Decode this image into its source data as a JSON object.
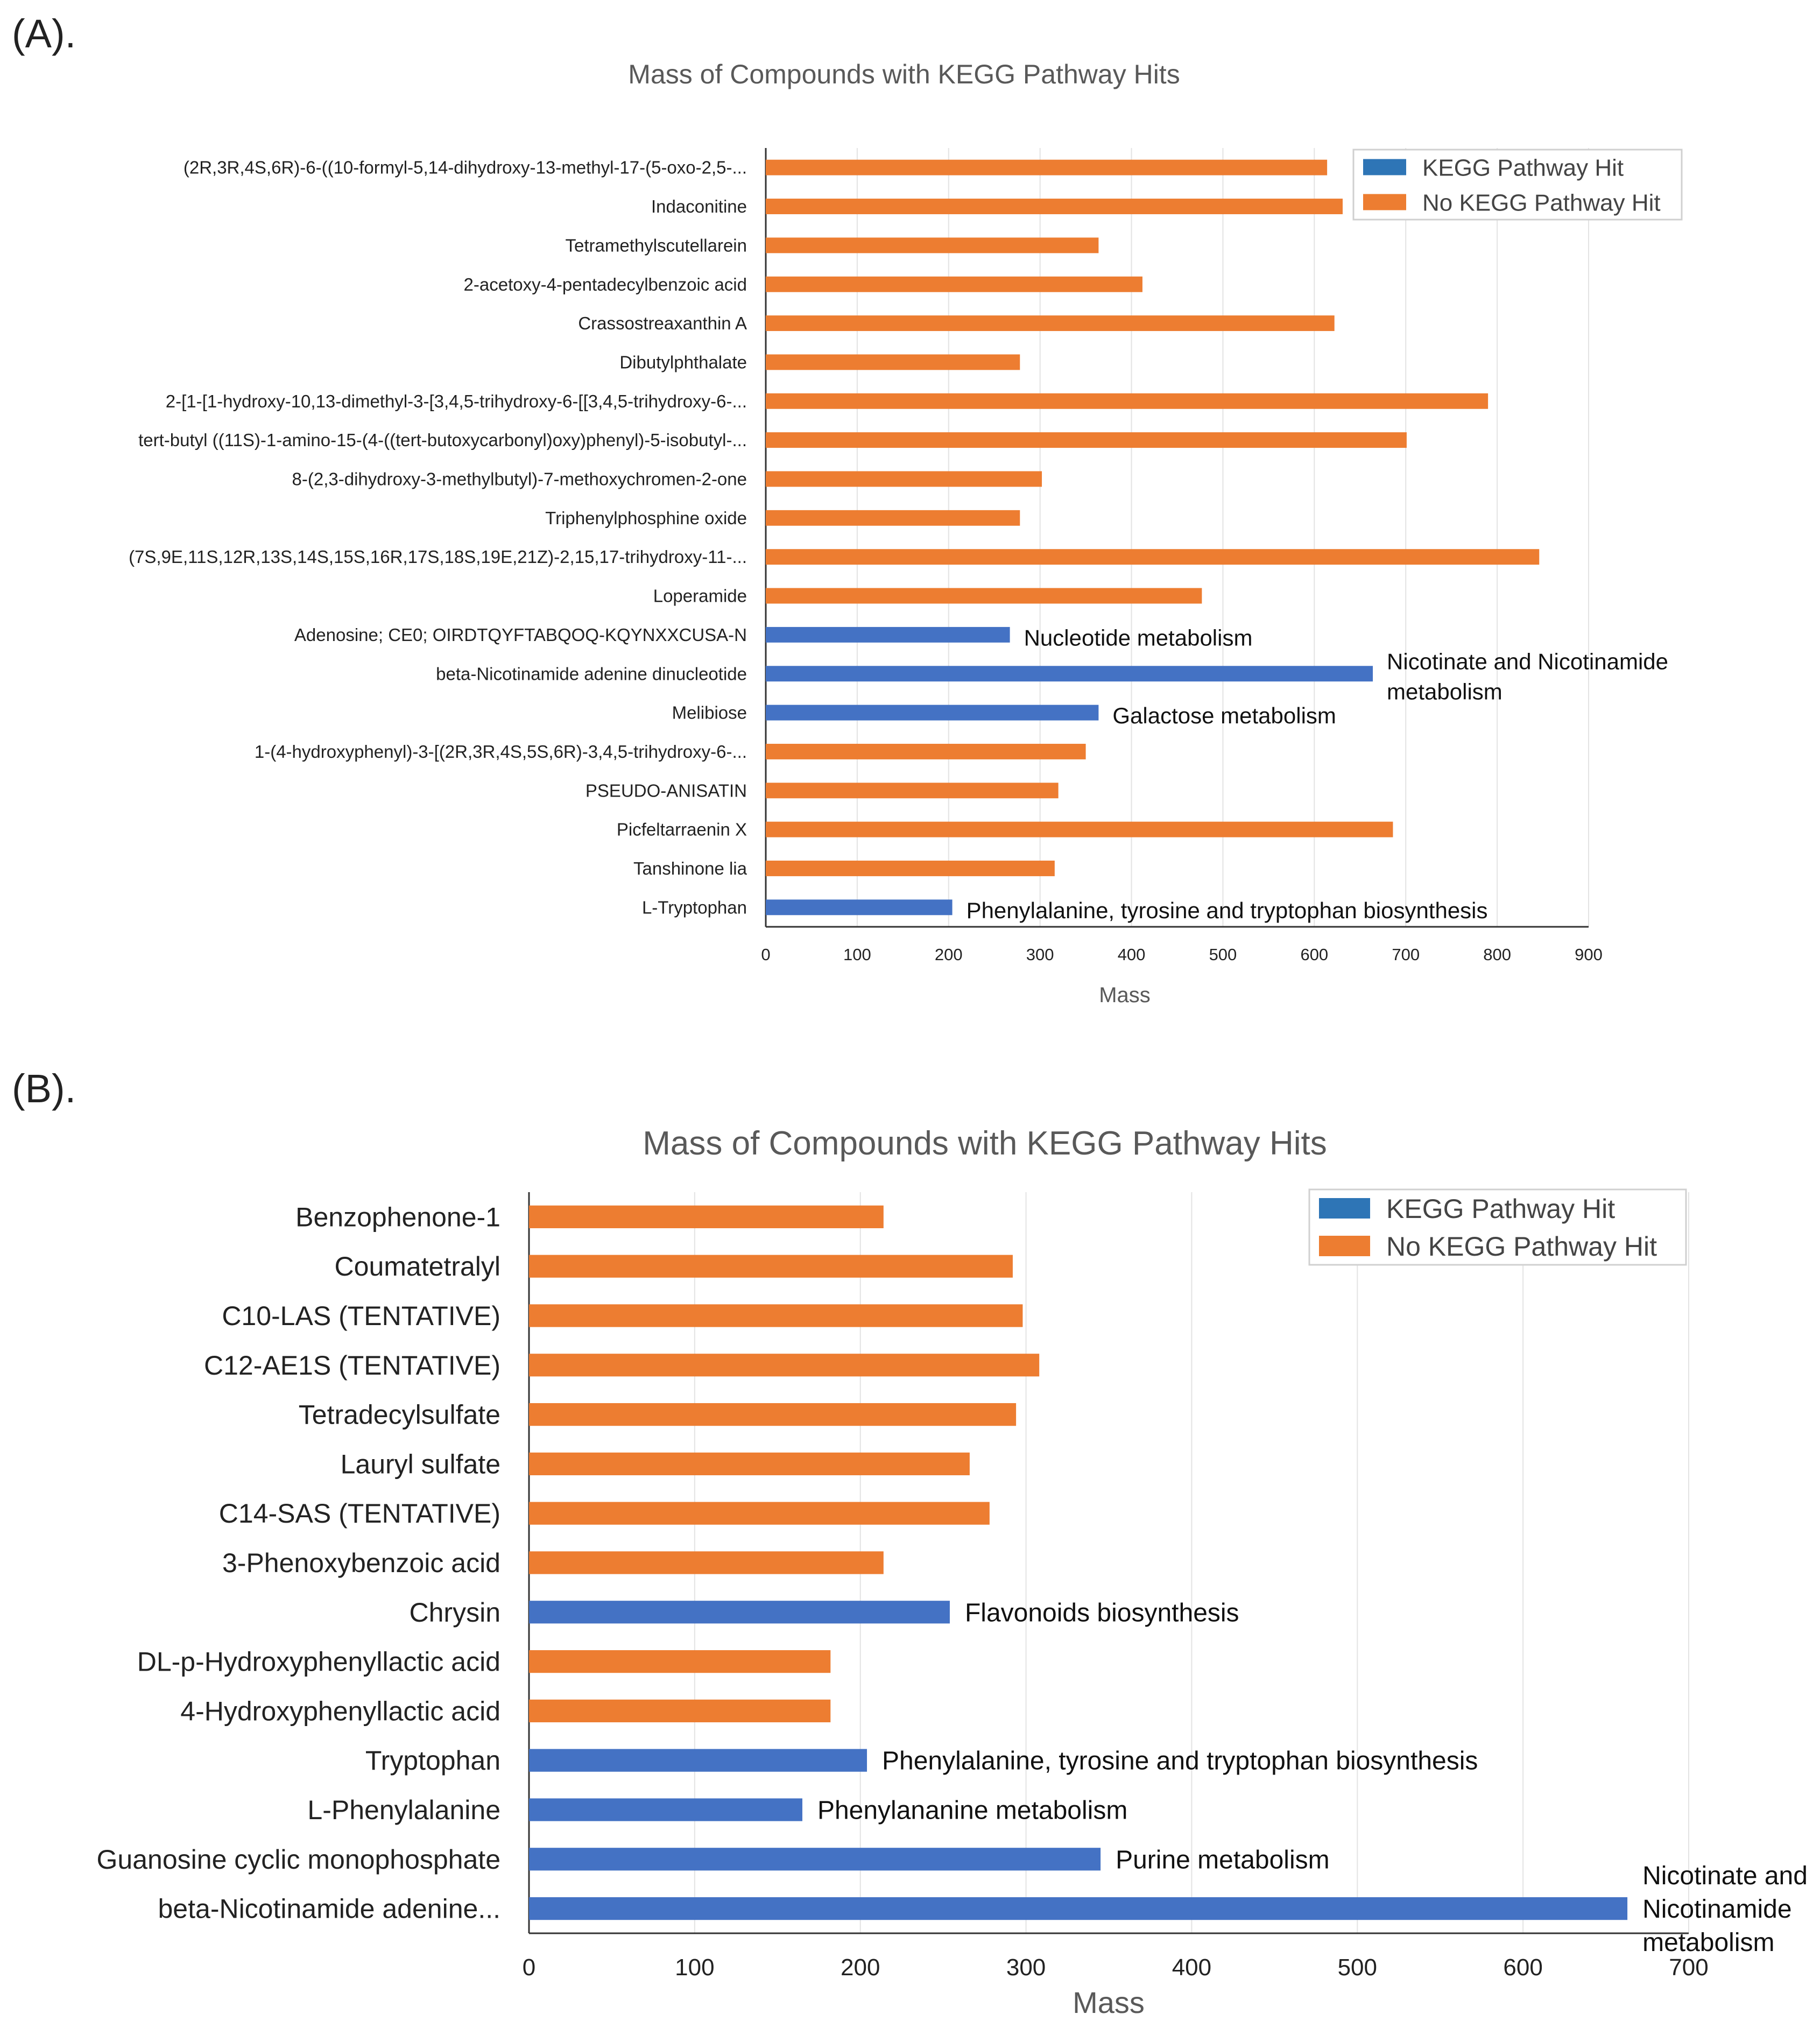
{
  "figure": {
    "panel_a_letter": "(A).",
    "panel_b_letter": "(B)."
  },
  "colors": {
    "hit": "#4472C4",
    "nohit": "#ED7D31",
    "legend_hit_swatch": "#2E75B6",
    "grid": "#e3e3e3",
    "axis": "#333333",
    "title": "#595959"
  },
  "chart_data": [
    {
      "type": "bar",
      "orientation": "horizontal",
      "title": "Mass of Compounds with KEGG Pathway Hits",
      "xlabel": "Mass",
      "ylabel": "",
      "xlim": [
        0,
        900
      ],
      "xticks": [
        0,
        100,
        200,
        300,
        400,
        500,
        600,
        700,
        800,
        900
      ],
      "grid": true,
      "legend": {
        "position": "top-right",
        "entries": [
          "KEGG Pathway Hit",
          "No KEGG Pathway Hit"
        ]
      },
      "categories": [
        "(2R,3R,4S,6R)-6-((10-formyl-5,14-dihydroxy-13-methyl-17-(5-oxo-2,5-...",
        "Indaconitine",
        "Tetramethylscutellarein",
        "2-acetoxy-4-pentadecylbenzoic acid",
        "Crassostreaxanthin A",
        "Dibutylphthalate",
        "2-[1-[1-hydroxy-10,13-dimethyl-3-[3,4,5-trihydroxy-6-[[3,4,5-trihydroxy-6-...",
        "tert-butyl ((11S)-1-amino-15-(4-((tert-butoxycarbonyl)oxy)phenyl)-5-isobutyl-...",
        "8-(2,3-dihydroxy-3-methylbutyl)-7-methoxychromen-2-one",
        "Triphenylphosphine oxide",
        "(7S,9E,11S,12R,13S,14S,15S,16R,17S,18S,19E,21Z)-2,15,17-trihydroxy-11-...",
        "Loperamide",
        "Adenosine; CE0; OIRDTQYFTABQOQ-KQYNXXCUSA-N",
        "beta-Nicotinamide adenine dinucleotide",
        "Melibiose",
        "1-(4-hydroxyphenyl)-3-[(2R,3R,4S,5S,6R)-3,4,5-trihydroxy-6-...",
        "PSEUDO-ANISATIN",
        "Picfeltarraenin X",
        "Tanshinone lia",
        "L-Tryptophan"
      ],
      "values": [
        614,
        631,
        364,
        412,
        622,
        278,
        790,
        701,
        302,
        278,
        846,
        477,
        267,
        664,
        364,
        350,
        320,
        686,
        316,
        204
      ],
      "kegg_hit": [
        false,
        false,
        false,
        false,
        false,
        false,
        false,
        false,
        false,
        false,
        false,
        false,
        true,
        true,
        true,
        false,
        false,
        false,
        false,
        true
      ],
      "annotations": [
        {
          "category_index": 12,
          "lines": [
            "Nucleotide metabolism"
          ]
        },
        {
          "category_index": 13,
          "lines": [
            "Nicotinate and Nicotinamide",
            "metabolism"
          ]
        },
        {
          "category_index": 14,
          "lines": [
            "Galactose metabolism"
          ]
        },
        {
          "category_index": 19,
          "lines": [
            "Phenylalanine, tyrosine and tryptophan biosynthesis"
          ]
        }
      ]
    },
    {
      "type": "bar",
      "orientation": "horizontal",
      "title": "Mass of Compounds with KEGG Pathway Hits",
      "xlabel": "Mass",
      "ylabel": "",
      "xlim": [
        0,
        700
      ],
      "xticks": [
        0,
        100,
        200,
        300,
        400,
        500,
        600,
        700
      ],
      "grid": true,
      "legend": {
        "position": "top-right",
        "entries": [
          "KEGG Pathway Hit",
          "No KEGG Pathway Hit"
        ]
      },
      "categories": [
        "Benzophenone-1",
        "Coumatetralyl",
        "C10-LAS (TENTATIVE)",
        "C12-AE1S (TENTATIVE)",
        "Tetradecylsulfate",
        "Lauryl sulfate",
        "C14-SAS (TENTATIVE)",
        "3-Phenoxybenzoic acid",
        "Chrysin",
        "DL-p-Hydroxyphenyllactic acid",
        "4-Hydroxyphenyllactic acid",
        "Tryptophan",
        "L-Phenylalanine",
        "Guanosine cyclic monophosphate",
        "beta-Nicotinamide adenine..."
      ],
      "values": [
        214,
        292,
        298,
        308,
        294,
        266,
        278,
        214,
        254,
        182,
        182,
        204,
        165,
        345,
        663
      ],
      "kegg_hit": [
        false,
        false,
        false,
        false,
        false,
        false,
        false,
        false,
        true,
        false,
        false,
        true,
        true,
        true,
        true
      ],
      "annotations": [
        {
          "category_index": 8,
          "lines": [
            "Flavonoids biosynthesis"
          ]
        },
        {
          "category_index": 11,
          "lines": [
            "Phenylalanine, tyrosine and tryptophan biosynthesis"
          ]
        },
        {
          "category_index": 12,
          "lines": [
            "Phenylananine metabolism"
          ]
        },
        {
          "category_index": 13,
          "lines": [
            "Purine metabolism"
          ]
        },
        {
          "category_index": 14,
          "lines": [
            "Nicotinate and",
            "Nicotinamide",
            "metabolism"
          ]
        }
      ]
    }
  ]
}
